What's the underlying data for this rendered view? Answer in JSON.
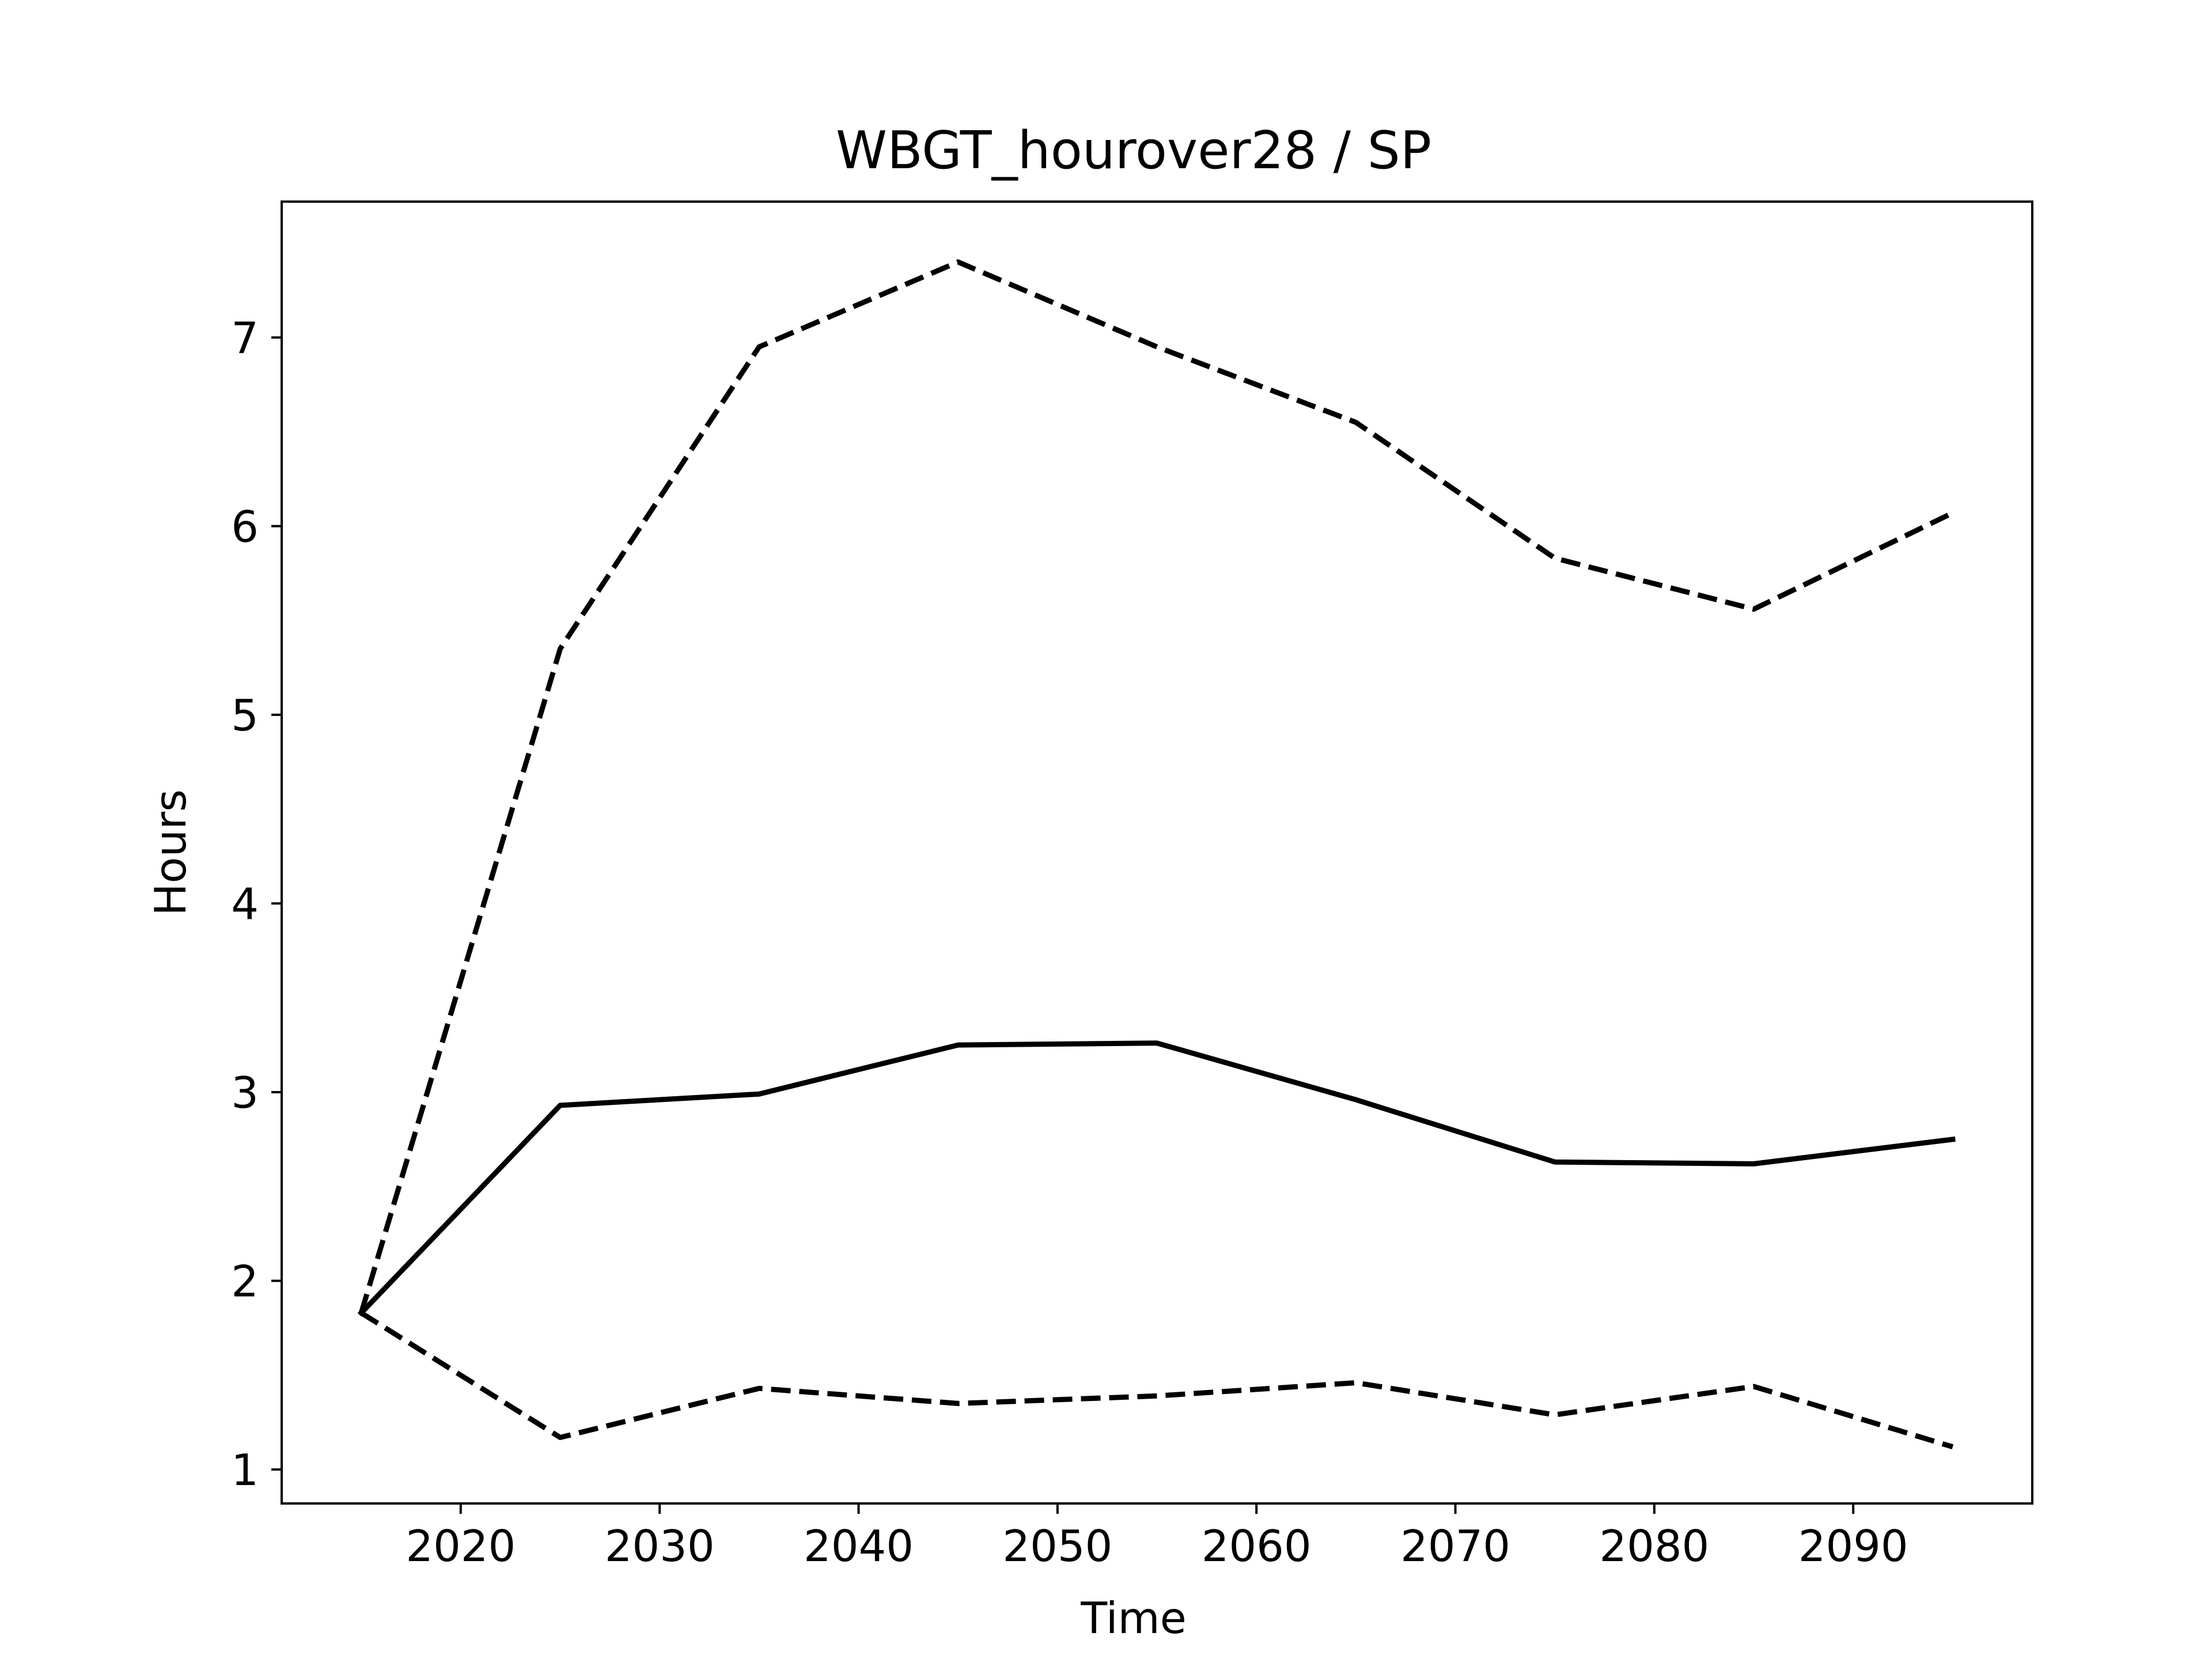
{
  "chart_data": {
    "type": "line",
    "title": "WBGT_hourover28 / SP",
    "xlabel": "Time",
    "ylabel": "Hours",
    "xlim": [
      2011,
      2099
    ],
    "ylim": [
      0.82,
      7.72
    ],
    "xticks": [
      2020,
      2030,
      2040,
      2050,
      2060,
      2070,
      2080,
      2090
    ],
    "yticks": [
      1,
      2,
      3,
      4,
      5,
      6,
      7
    ],
    "x": [
      2015,
      2025,
      2035,
      2045,
      2055,
      2065,
      2075,
      2085,
      2095
    ],
    "series": [
      {
        "style": "solid",
        "color": "#000000",
        "values": [
          1.83,
          2.93,
          2.99,
          3.25,
          3.26,
          2.96,
          2.63,
          2.62,
          2.75
        ]
      },
      {
        "style": "dashed",
        "color": "#000000",
        "values": [
          1.83,
          5.35,
          6.95,
          7.4,
          6.95,
          6.55,
          5.83,
          5.56,
          6.07
        ]
      },
      {
        "style": "dashed",
        "color": "#000000",
        "values": [
          1.83,
          1.17,
          1.43,
          1.35,
          1.39,
          1.46,
          1.29,
          1.44,
          1.12
        ]
      }
    ],
    "grid": false,
    "legend": "none"
  }
}
